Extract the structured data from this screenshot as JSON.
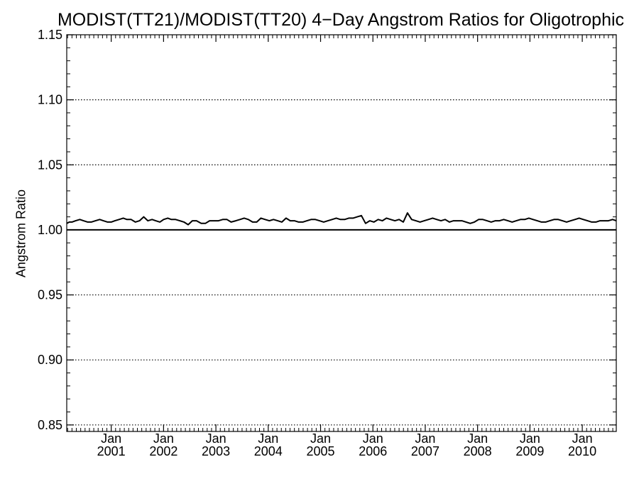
{
  "chart_data": {
    "type": "line",
    "title": "MODIST(TT21)/MODIST(TT20) 4−Day Angstrom Ratios for Oligotrophic",
    "xlabel": "",
    "ylabel": "Angstrom Ratio",
    "ylim": [
      0.845,
      1.15
    ],
    "y_ticks": [
      0.85,
      0.9,
      0.95,
      1.0,
      1.05,
      1.1,
      1.15
    ],
    "y_tick_labels": [
      "0.85",
      "0.90",
      "0.95",
      "1.00",
      "1.05",
      "1.10",
      "1.15"
    ],
    "xlim": [
      2000.15,
      2010.65
    ],
    "x_ticks": [
      {
        "year": 2001,
        "month_label": "Jan",
        "year_label": "2001"
      },
      {
        "year": 2002,
        "month_label": "Jan",
        "year_label": "2002"
      },
      {
        "year": 2003,
        "month_label": "Jan",
        "year_label": "2003"
      },
      {
        "year": 2004,
        "month_label": "Jan",
        "year_label": "2004"
      },
      {
        "year": 2005,
        "month_label": "Jan",
        "year_label": "2005"
      },
      {
        "year": 2006,
        "month_label": "Jan",
        "year_label": "2006"
      },
      {
        "year": 2007,
        "month_label": "Jan",
        "year_label": "2007"
      },
      {
        "year": 2008,
        "month_label": "Jan",
        "year_label": "2008"
      },
      {
        "year": 2009,
        "month_label": "Jan",
        "year_label": "2009"
      },
      {
        "year": 2010,
        "month_label": "Jan",
        "year_label": "2010"
      }
    ],
    "grid": "dotted horizontal lines at major y ticks",
    "reference_line": 1.0,
    "series": [
      {
        "x": [
          2000.15,
          2000.2,
          2000.25,
          2000.32,
          2000.4,
          2000.47,
          2000.55,
          2000.62,
          2000.7,
          2000.78,
          2000.85,
          2000.93,
          2001.0,
          2001.07,
          2001.15,
          2001.23,
          2001.3,
          2001.38,
          2001.46,
          2001.54,
          2001.62,
          2001.7,
          2001.78,
          2001.85,
          2001.93,
          2002.0,
          2002.08,
          2002.15,
          2002.23,
          2002.31,
          2002.39,
          2002.47,
          2002.55,
          2002.63,
          2002.72,
          2002.8,
          2002.88,
          2002.96,
          2003.05,
          2003.13,
          2003.21,
          2003.29,
          2003.38,
          2003.46,
          2003.54,
          2003.62,
          2003.7,
          2003.78,
          2003.86,
          2003.94,
          2004.02,
          2004.1,
          2004.18,
          2004.26,
          2004.34,
          2004.42,
          2004.5,
          2004.58,
          2004.66,
          2004.74,
          2004.82,
          2004.9,
          2004.98,
          2005.06,
          2005.14,
          2005.22,
          2005.3,
          2005.38,
          2005.46,
          2005.54,
          2005.62,
          2005.7,
          2005.78,
          2005.86,
          2005.94,
          2006.02,
          2006.1,
          2006.18,
          2006.26,
          2006.34,
          2006.42,
          2006.5,
          2006.58,
          2006.66,
          2006.74,
          2006.82,
          2006.9,
          2006.98,
          2007.06,
          2007.14,
          2007.22,
          2007.3,
          2007.38,
          2007.46,
          2007.54,
          2007.62,
          2007.7,
          2007.78,
          2007.86,
          2007.94,
          2008.02,
          2008.1,
          2008.18,
          2008.26,
          2008.34,
          2008.42,
          2008.5,
          2008.58,
          2008.66,
          2008.74,
          2008.82,
          2008.9,
          2008.98,
          2009.06,
          2009.14,
          2009.22,
          2009.3,
          2009.38,
          2009.46,
          2009.54,
          2009.62,
          2009.7,
          2009.78,
          2009.86,
          2009.94,
          2010.02,
          2010.1,
          2010.18,
          2010.26,
          2010.34,
          2010.42,
          2010.5,
          2010.58,
          2010.65
        ],
        "values": [
          1.005,
          1.006,
          1.006,
          1.007,
          1.008,
          1.007,
          1.006,
          1.006,
          1.007,
          1.008,
          1.007,
          1.006,
          1.006,
          1.007,
          1.008,
          1.009,
          1.008,
          1.008,
          1.006,
          1.007,
          1.01,
          1.007,
          1.008,
          1.007,
          1.006,
          1.008,
          1.009,
          1.008,
          1.008,
          1.007,
          1.006,
          1.004,
          1.007,
          1.007,
          1.005,
          1.005,
          1.007,
          1.007,
          1.007,
          1.008,
          1.008,
          1.006,
          1.007,
          1.008,
          1.009,
          1.008,
          1.006,
          1.006,
          1.009,
          1.008,
          1.007,
          1.008,
          1.007,
          1.006,
          1.009,
          1.007,
          1.007,
          1.006,
          1.006,
          1.007,
          1.008,
          1.008,
          1.007,
          1.006,
          1.007,
          1.008,
          1.009,
          1.008,
          1.008,
          1.009,
          1.009,
          1.01,
          1.011,
          1.005,
          1.007,
          1.006,
          1.008,
          1.007,
          1.009,
          1.008,
          1.007,
          1.008,
          1.006,
          1.013,
          1.008,
          1.007,
          1.006,
          1.007,
          1.008,
          1.009,
          1.008,
          1.007,
          1.008,
          1.006,
          1.007,
          1.007,
          1.007,
          1.006,
          1.005,
          1.006,
          1.008,
          1.008,
          1.007,
          1.006,
          1.007,
          1.007,
          1.008,
          1.007,
          1.006,
          1.007,
          1.008,
          1.008,
          1.009,
          1.008,
          1.007,
          1.006,
          1.006,
          1.007,
          1.008,
          1.008,
          1.007,
          1.006,
          1.007,
          1.008,
          1.009,
          1.008,
          1.007,
          1.006,
          1.006,
          1.007,
          1.007,
          1.007,
          1.008,
          1.007
        ]
      }
    ]
  }
}
